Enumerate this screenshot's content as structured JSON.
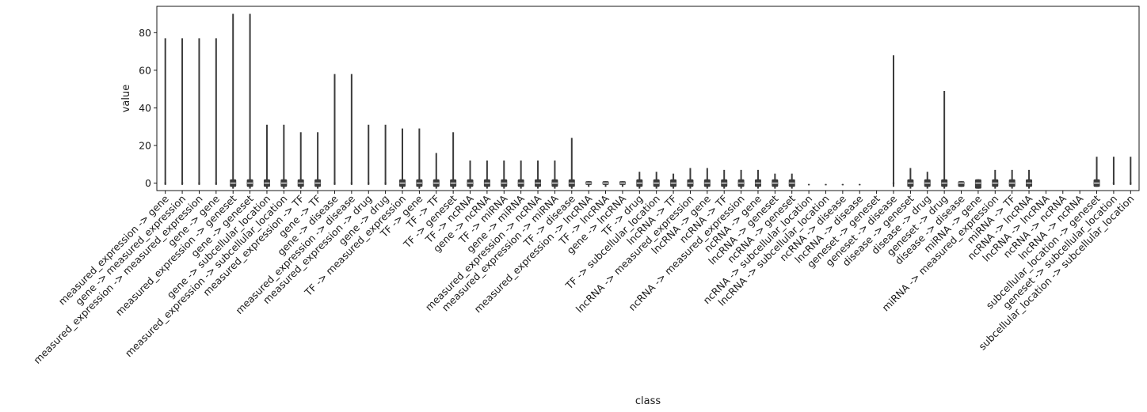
{
  "chart_data": {
    "type": "violin",
    "xlabel": "class",
    "ylabel": "value",
    "ylim": [
      -4,
      94
    ],
    "yticks": [
      0,
      20,
      40,
      60,
      80
    ],
    "grid": false,
    "legend": "none",
    "color": "#3b3b3b",
    "categories": [
      "measured_expression -> gene",
      "gene -> measured_expression",
      "measured_expression -> measured_expression",
      "gene -> gene",
      "measured_expression -> geneset",
      "gene -> geneset",
      "gene -> subcellular_location",
      "measured_expression -> subcellular_location",
      "measured_expression -> TF",
      "gene -> TF",
      "gene -> disease",
      "measured_expression -> disease",
      "measured_expression -> drug",
      "gene -> drug",
      "TF -> measured_expression",
      "TF -> gene",
      "TF -> TF",
      "TF -> geneset",
      "TF -> ncRNA",
      "gene -> ncRNA",
      "TF -> miRNA",
      "gene -> miRNA",
      "measured_expression -> ncRNA",
      "measured_expression -> miRNA",
      "TF -> disease",
      "measured_expression -> lncRNA",
      "TF -> lncRNA",
      "gene -> lncRNA",
      "TF -> drug",
      "TF -> subcellular_location",
      "lncRNA -> TF",
      "lncRNA -> measured_expression",
      "lncRNA -> gene",
      "ncRNA -> TF",
      "ncRNA -> measured_expression",
      "ncRNA -> gene",
      "lncRNA -> geneset",
      "ncRNA -> geneset",
      "ncRNA -> subcellular_location",
      "lncRNA -> subcellular_location",
      "ncRNA -> disease",
      "lncRNA -> disease",
      "geneset -> geneset",
      "geneset -> disease",
      "disease -> geneset",
      "disease -> drug",
      "geneset -> drug",
      "disease -> disease",
      "miRNA -> gene",
      "miRNA -> measured_expression",
      "miRNA -> TF",
      "ncRNA -> lncRNA",
      "lncRNA -> lncRNA",
      "ncRNA -> ncRNA",
      "lncRNA -> ncRNA",
      "subcellular_location -> geneset",
      "geneset -> subcellular_location",
      "subcellular_location -> subcellular_location"
    ],
    "max": [
      77,
      77,
      77,
      77,
      90,
      90,
      31,
      31,
      27,
      27,
      58,
      58,
      31,
      31,
      29,
      29,
      16,
      27,
      12,
      12,
      12,
      12,
      12,
      12,
      24,
      1,
      1,
      1,
      6,
      6,
      5,
      8,
      8,
      7,
      7,
      7,
      5,
      5,
      -0.5,
      -0.5,
      -0.5,
      -0.5,
      null,
      68,
      8,
      6,
      49,
      1,
      2,
      7,
      7,
      7,
      null,
      null,
      null,
      14,
      14,
      14
    ],
    "q1": [
      -0.3,
      -0.3,
      -0.3,
      -0.3,
      -2,
      -2,
      -2,
      -2,
      -2,
      -2,
      -0.3,
      -0.3,
      -0.3,
      -0.3,
      -2,
      -2,
      -2,
      -2,
      -2,
      -2,
      -2,
      -2,
      -2,
      -2,
      -2,
      -1,
      -1,
      -1,
      -2,
      -2,
      -2,
      -2,
      -2,
      -2,
      -2,
      -2,
      -2,
      -2,
      -0.9,
      -0.9,
      -0.9,
      -0.9,
      null,
      -0.3,
      -2,
      -2,
      -2,
      -2,
      -3,
      -2,
      -2,
      -2,
      null,
      null,
      null,
      -2,
      -0.3,
      -0.3
    ],
    "q3": [
      0.3,
      0.3,
      0.3,
      0.3,
      2,
      2,
      2,
      2,
      2,
      2,
      0.3,
      0.3,
      0.3,
      0.3,
      2,
      2,
      2,
      2,
      2,
      2,
      2,
      2,
      2,
      2,
      2,
      1,
      1,
      1,
      2,
      2,
      2,
      2,
      2,
      2,
      2,
      2,
      2,
      2,
      -0.6,
      -0.6,
      -0.6,
      -0.6,
      null,
      0.3,
      2,
      2,
      2,
      1,
      2,
      2,
      2,
      2,
      null,
      null,
      null,
      2,
      0.3,
      0.3
    ],
    "min": [
      -1,
      -1,
      -1,
      -1,
      -3,
      -3,
      -3,
      -3,
      -3,
      -3,
      -1,
      -1,
      -1,
      -1,
      -3,
      -3,
      -3,
      -3,
      -3,
      -3,
      -3,
      -3,
      -3,
      -3,
      -3,
      -2,
      -2,
      -2,
      -3,
      -3,
      -3,
      -3,
      -3,
      -3,
      -3,
      -3,
      -3,
      -3,
      -1,
      -1,
      -1,
      -1,
      null,
      -2,
      -3,
      -3,
      -3,
      -2,
      -3,
      -3,
      -3,
      -3,
      null,
      null,
      null,
      -2,
      -1,
      -1
    ]
  }
}
